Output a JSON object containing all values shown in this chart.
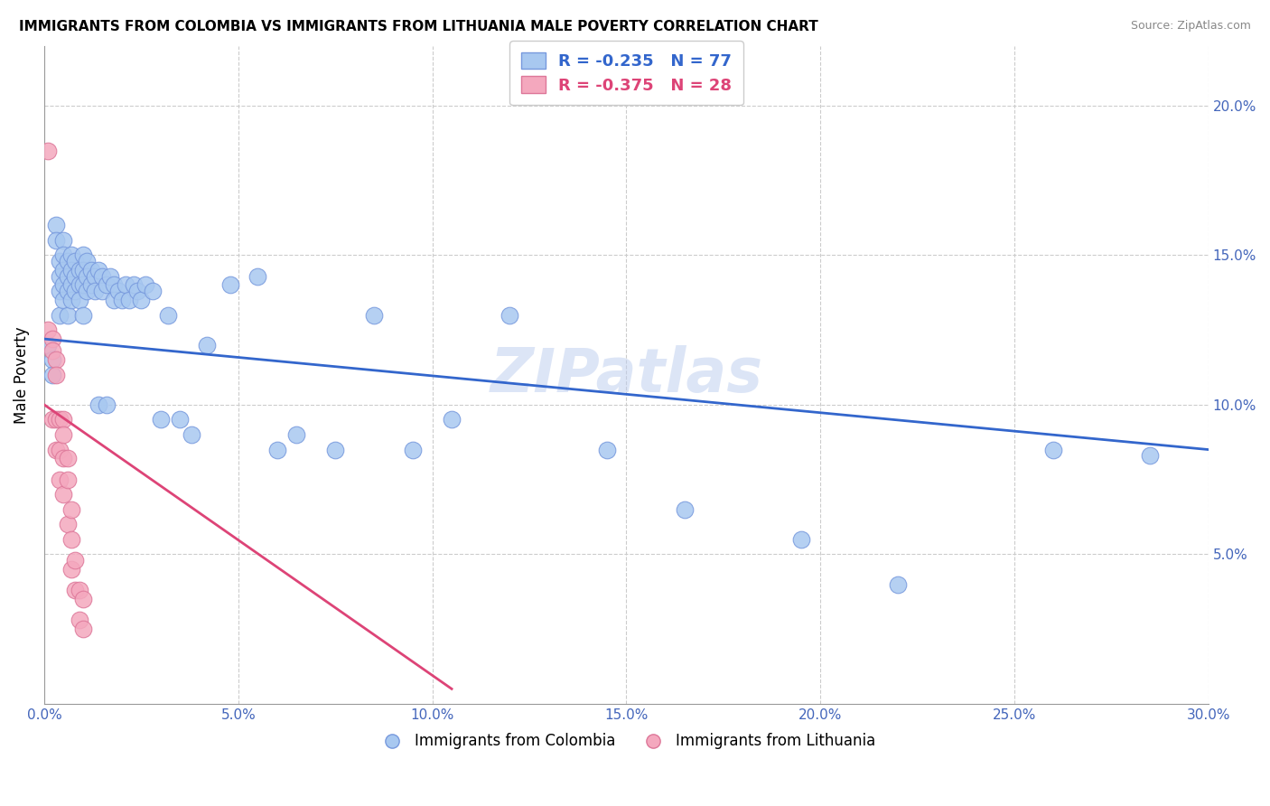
{
  "title": "IMMIGRANTS FROM COLOMBIA VS IMMIGRANTS FROM LITHUANIA MALE POVERTY CORRELATION CHART",
  "source": "Source: ZipAtlas.com",
  "xlabel_colombia": "Immigrants from Colombia",
  "xlabel_lithuania": "Immigrants from Lithuania",
  "ylabel": "Male Poverty",
  "xlim": [
    0.0,
    0.3
  ],
  "ylim": [
    0.0,
    0.22
  ],
  "xticks": [
    0.0,
    0.05,
    0.1,
    0.15,
    0.2,
    0.25,
    0.3
  ],
  "yticks": [
    0.05,
    0.1,
    0.15,
    0.2
  ],
  "ytick_labels": [
    "5.0%",
    "10.0%",
    "15.0%",
    "20.0%"
  ],
  "xtick_labels": [
    "0.0%",
    "5.0%",
    "10.0%",
    "15.0%",
    "20.0%",
    "25.0%",
    "30.0%"
  ],
  "colombia_color": "#A8C8F0",
  "lithuania_color": "#F4A8BE",
  "colombia_edge": "#7799DD",
  "lithuania_edge": "#DD7799",
  "trend_colombia_color": "#3366CC",
  "trend_lithuania_color": "#DD4477",
  "grid_color": "#CCCCCC",
  "watermark": "ZIPatlas",
  "legend_r_colombia": "R = -0.235",
  "legend_n_colombia": "N = 77",
  "legend_r_lithuania": "R = -0.375",
  "legend_n_lithuania": "N = 28",
  "colombia_x": [
    0.001,
    0.002,
    0.002,
    0.003,
    0.003,
    0.004,
    0.004,
    0.004,
    0.004,
    0.005,
    0.005,
    0.005,
    0.005,
    0.005,
    0.006,
    0.006,
    0.006,
    0.006,
    0.007,
    0.007,
    0.007,
    0.007,
    0.008,
    0.008,
    0.008,
    0.009,
    0.009,
    0.009,
    0.01,
    0.01,
    0.01,
    0.01,
    0.011,
    0.011,
    0.011,
    0.012,
    0.012,
    0.013,
    0.013,
    0.014,
    0.014,
    0.015,
    0.015,
    0.016,
    0.016,
    0.017,
    0.018,
    0.018,
    0.019,
    0.02,
    0.021,
    0.022,
    0.023,
    0.024,
    0.025,
    0.026,
    0.028,
    0.03,
    0.032,
    0.035,
    0.038,
    0.042,
    0.048,
    0.055,
    0.06,
    0.065,
    0.075,
    0.085,
    0.095,
    0.105,
    0.12,
    0.145,
    0.165,
    0.195,
    0.22,
    0.26,
    0.285
  ],
  "colombia_y": [
    0.12,
    0.115,
    0.11,
    0.16,
    0.155,
    0.148,
    0.143,
    0.138,
    0.13,
    0.155,
    0.15,
    0.145,
    0.14,
    0.135,
    0.148,
    0.143,
    0.138,
    0.13,
    0.15,
    0.145,
    0.14,
    0.135,
    0.148,
    0.143,
    0.138,
    0.145,
    0.14,
    0.135,
    0.15,
    0.145,
    0.14,
    0.13,
    0.148,
    0.143,
    0.138,
    0.145,
    0.14,
    0.143,
    0.138,
    0.145,
    0.1,
    0.143,
    0.138,
    0.14,
    0.1,
    0.143,
    0.14,
    0.135,
    0.138,
    0.135,
    0.14,
    0.135,
    0.14,
    0.138,
    0.135,
    0.14,
    0.138,
    0.095,
    0.13,
    0.095,
    0.09,
    0.12,
    0.14,
    0.143,
    0.085,
    0.09,
    0.085,
    0.13,
    0.085,
    0.095,
    0.13,
    0.085,
    0.065,
    0.055,
    0.04,
    0.085,
    0.083
  ],
  "lithuania_x": [
    0.001,
    0.001,
    0.002,
    0.002,
    0.002,
    0.003,
    0.003,
    0.003,
    0.003,
    0.004,
    0.004,
    0.004,
    0.005,
    0.005,
    0.005,
    0.005,
    0.006,
    0.006,
    0.006,
    0.007,
    0.007,
    0.007,
    0.008,
    0.008,
    0.009,
    0.009,
    0.01,
    0.01
  ],
  "lithuania_y": [
    0.185,
    0.125,
    0.122,
    0.118,
    0.095,
    0.115,
    0.11,
    0.095,
    0.085,
    0.095,
    0.085,
    0.075,
    0.095,
    0.09,
    0.082,
    0.07,
    0.082,
    0.075,
    0.06,
    0.065,
    0.055,
    0.045,
    0.048,
    0.038,
    0.038,
    0.028,
    0.035,
    0.025
  ],
  "colombia_trend_x": [
    0.0,
    0.3
  ],
  "colombia_trend_y": [
    0.122,
    0.085
  ],
  "lithuania_trend_x": [
    0.0,
    0.105
  ],
  "lithuania_trend_y": [
    0.1,
    0.005
  ]
}
